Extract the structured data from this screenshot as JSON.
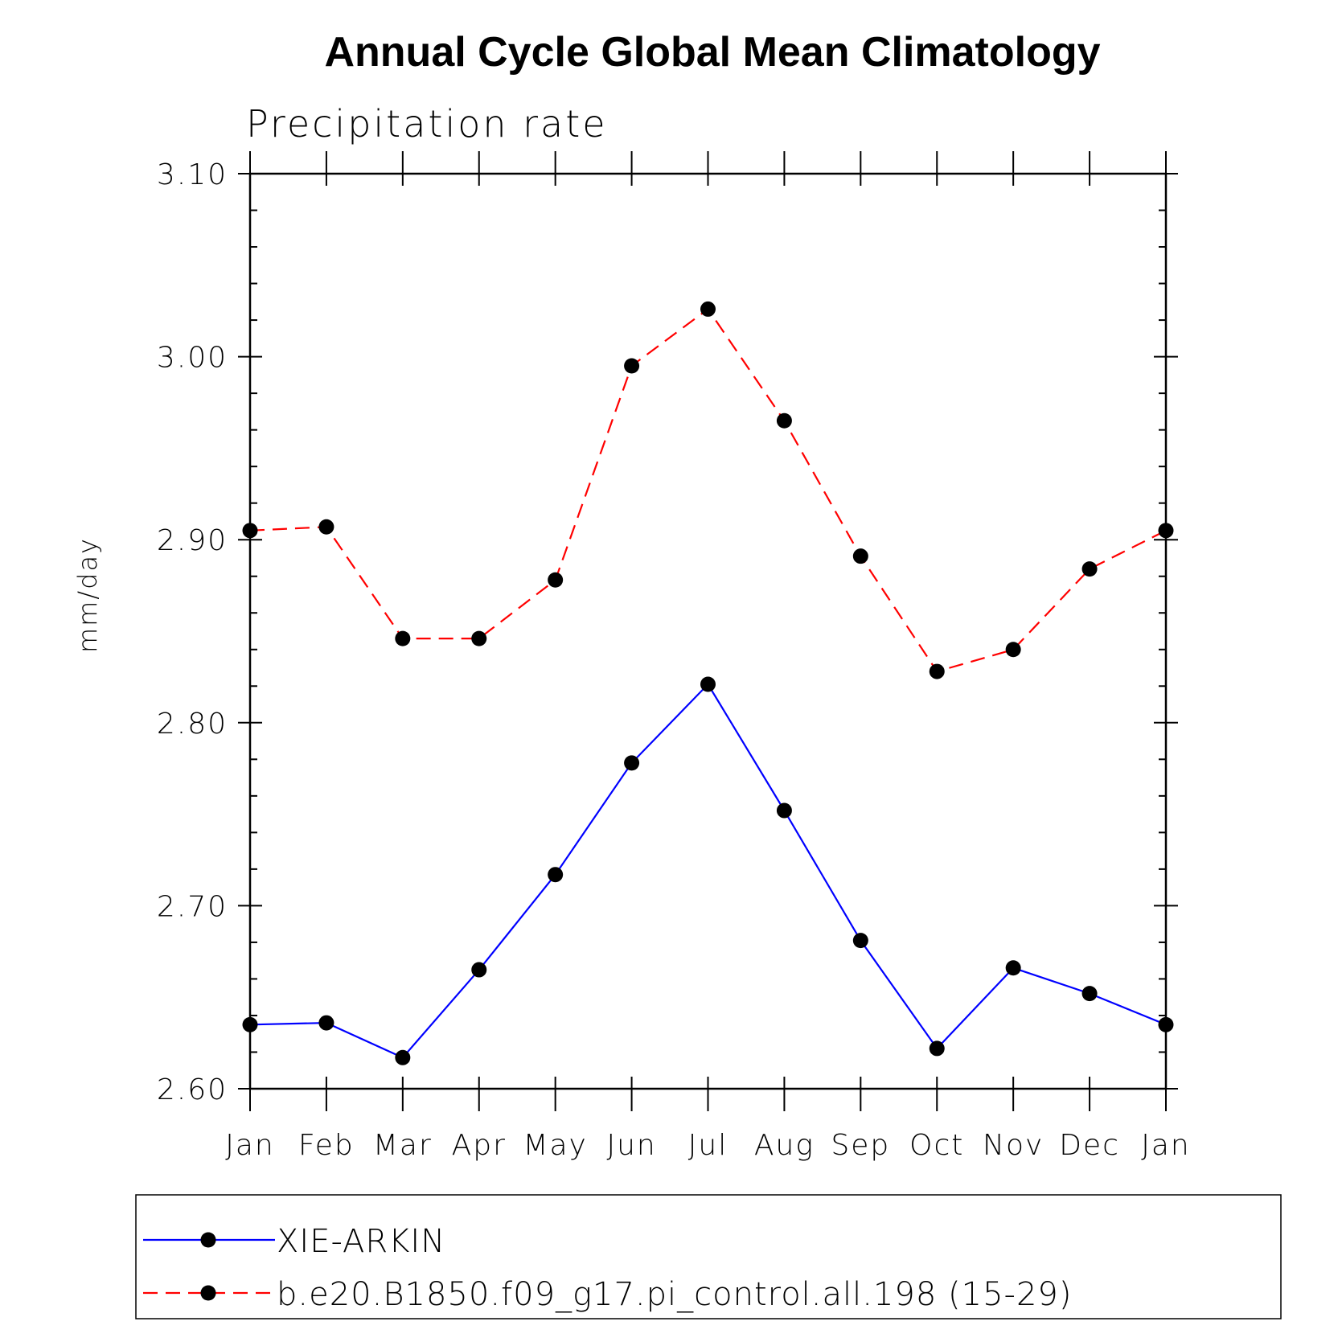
{
  "chart_data": {
    "type": "line",
    "title": "Annual Cycle Global Mean Climatology",
    "subtitle": "Precipitation rate",
    "xlabel": "",
    "ylabel": "mm/day",
    "categories": [
      "Jan",
      "Feb",
      "Mar",
      "Apr",
      "May",
      "Jun",
      "Jul",
      "Aug",
      "Sep",
      "Oct",
      "Nov",
      "Dec",
      "Jan"
    ],
    "ylim": [
      2.6,
      3.1
    ],
    "yticks": [
      "2.60",
      "2.70",
      "2.80",
      "2.90",
      "3.00",
      "3.10"
    ],
    "yminor_step": 0.02,
    "grid": false,
    "legend_position": "bottom",
    "series": [
      {
        "name": "XIE-ARKIN",
        "color": "#0000ff",
        "dash": "solid",
        "values": [
          2.635,
          2.636,
          2.617,
          2.665,
          2.717,
          2.778,
          2.821,
          2.752,
          2.681,
          2.622,
          2.666,
          2.652,
          2.635
        ]
      },
      {
        "name": "b.e20.B1850.f09_g17.pi_control.all.198 (15-29)",
        "color": "#ff0000",
        "dash": "dashed",
        "values": [
          2.905,
          2.907,
          2.846,
          2.846,
          2.878,
          2.995,
          3.026,
          2.965,
          2.891,
          2.828,
          2.84,
          2.884,
          2.905
        ]
      }
    ]
  }
}
